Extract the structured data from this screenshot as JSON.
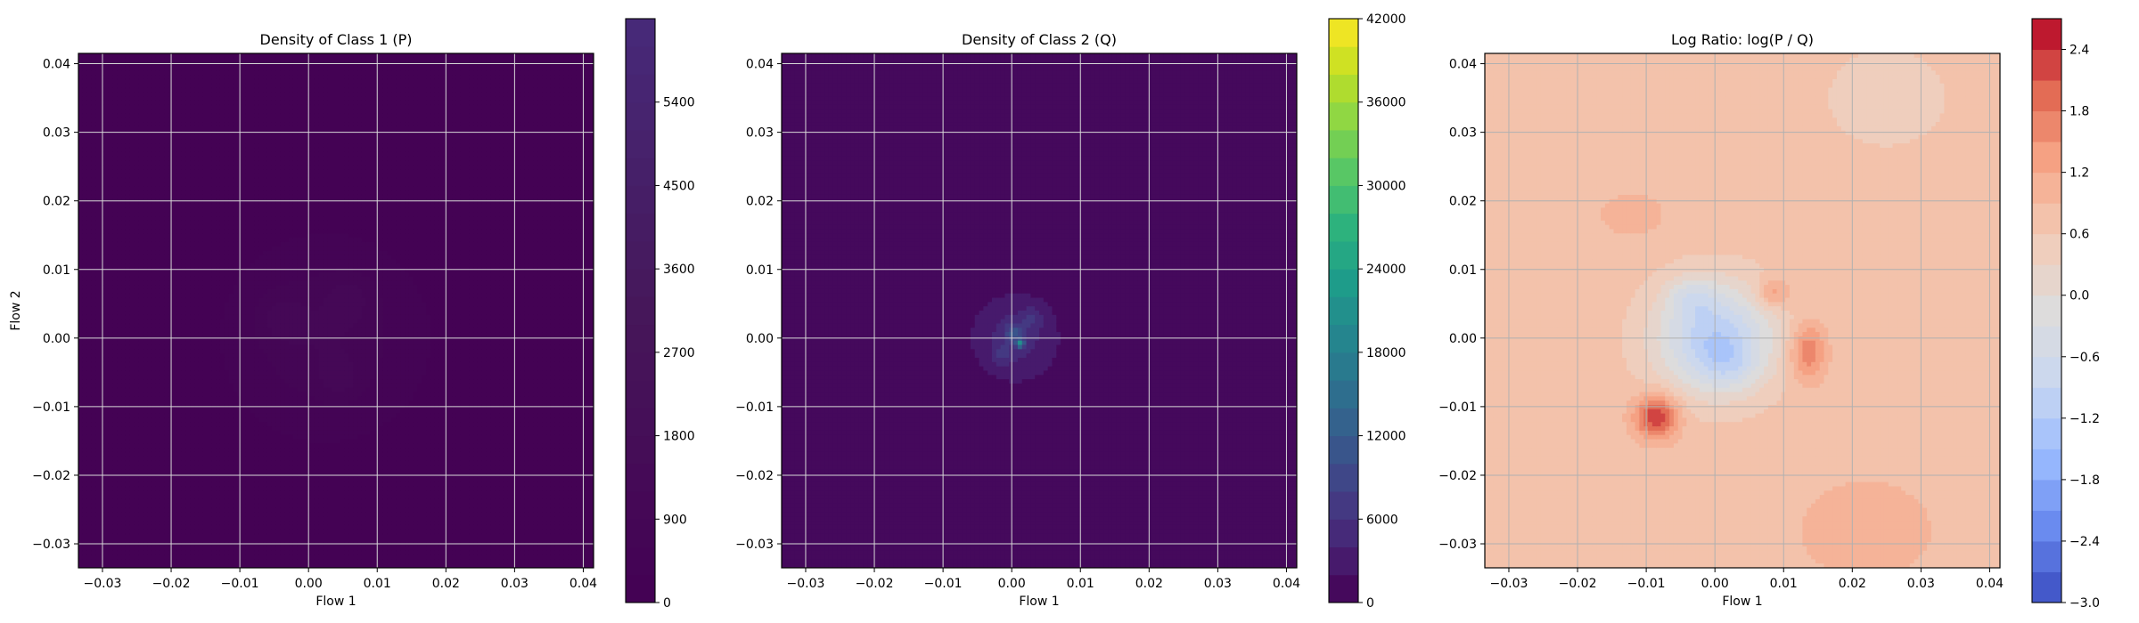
{
  "chart_data": [
    {
      "type": "heatmap",
      "title": "Density of Class 1 (P)",
      "xlabel": "Flow 1",
      "ylabel": "Flow 2",
      "xlim": [
        -0.0335,
        0.0415
      ],
      "ylim": [
        -0.0335,
        0.0415
      ],
      "xticks": [
        -0.03,
        -0.02,
        -0.01,
        0.0,
        0.01,
        0.02,
        0.03,
        0.04
      ],
      "xtick_labels": [
        "−0.03",
        "−0.02",
        "−0.01",
        "0.00",
        "0.01",
        "0.02",
        "0.03",
        "0.04"
      ],
      "yticks": [
        -0.03,
        -0.02,
        -0.01,
        0.0,
        0.01,
        0.02,
        0.03,
        0.04
      ],
      "ytick_labels": [
        "−0.03",
        "−0.02",
        "−0.01",
        "0.00",
        "0.01",
        "0.02",
        "0.03",
        "0.04"
      ],
      "grid": true,
      "colormap": "viridis",
      "colorbar": {
        "range": [
          0,
          6300
        ],
        "ticks": [
          0,
          900,
          1800,
          2700,
          3600,
          4500,
          5400
        ],
        "levels": 21,
        "colors": [
          "#440154",
          "#46175a",
          "#472a7a"
        ]
      },
      "background_value": 150,
      "blobs": [
        {
          "x": 0.0025,
          "y": 0.0,
          "sx": 0.0085,
          "sy": 0.0085,
          "v": 750
        },
        {
          "x": -0.004,
          "y": 0.003,
          "sx": 0.0025,
          "sy": 0.0025,
          "v": 450
        },
        {
          "x": 0.0045,
          "y": -0.006,
          "sx": 0.002,
          "sy": 0.002,
          "v": 420
        },
        {
          "x": 0.006,
          "y": 0.006,
          "sx": 0.0025,
          "sy": 0.0025,
          "v": 380
        }
      ]
    },
    {
      "type": "heatmap",
      "title": "Density of Class 2 (Q)",
      "xlabel": "Flow 1",
      "ylabel": "",
      "xlim": [
        -0.0335,
        0.0415
      ],
      "ylim": [
        -0.0335,
        0.0415
      ],
      "xticks": [
        -0.03,
        -0.02,
        -0.01,
        0.0,
        0.01,
        0.02,
        0.03,
        0.04
      ],
      "xtick_labels": [
        "−0.03",
        "−0.02",
        "−0.01",
        "0.00",
        "0.01",
        "0.02",
        "0.03",
        "0.04"
      ],
      "yticks": [
        -0.03,
        -0.02,
        -0.01,
        0.0,
        0.01,
        0.02,
        0.03,
        0.04
      ],
      "ytick_labels": [
        "−0.03",
        "−0.02",
        "−0.01",
        "0.00",
        "0.01",
        "0.02",
        "0.03",
        "0.04"
      ],
      "grid": true,
      "colormap": "viridis",
      "colorbar": {
        "range": [
          0,
          42000
        ],
        "ticks": [
          0,
          6000,
          12000,
          18000,
          24000,
          30000,
          36000,
          42000
        ],
        "levels": 21,
        "colors": [
          "#440154",
          "#482173",
          "#433e85",
          "#38588c",
          "#2d708e",
          "#25858e",
          "#1e9b8a",
          "#2ab07f",
          "#52c569",
          "#86d549",
          "#c2df23",
          "#fde725"
        ]
      },
      "background_value": 1200,
      "blobs": [
        {
          "x": 0.0005,
          "y": 0.0,
          "sx": 0.0035,
          "sy": 0.0035,
          "v": 4200
        },
        {
          "x": 0.0012,
          "y": -0.0008,
          "sx": 0.0004,
          "sy": 0.0004,
          "v": 16000
        },
        {
          "x": 0.0003,
          "y": 0.0008,
          "sx": 0.0009,
          "sy": 0.0009,
          "v": 5500
        },
        {
          "x": -0.0015,
          "y": -0.0025,
          "sx": 0.001,
          "sy": 0.001,
          "v": 3000
        },
        {
          "x": 0.003,
          "y": 0.003,
          "sx": 0.0012,
          "sy": 0.0012,
          "v": 2800
        }
      ]
    },
    {
      "type": "heatmap",
      "title": "Log Ratio: log(P / Q)",
      "xlabel": "Flow 1",
      "ylabel": "",
      "xlim": [
        -0.0335,
        0.0415
      ],
      "ylim": [
        -0.0335,
        0.0415
      ],
      "xticks": [
        -0.03,
        -0.02,
        -0.01,
        0.0,
        0.01,
        0.02,
        0.03,
        0.04
      ],
      "xtick_labels": [
        "−0.03",
        "−0.02",
        "−0.01",
        "0.00",
        "0.01",
        "0.02",
        "0.03",
        "0.04"
      ],
      "yticks": [
        -0.03,
        -0.02,
        -0.01,
        0.0,
        0.01,
        0.02,
        0.03,
        0.04
      ],
      "ytick_labels": [
        "−0.03",
        "−0.02",
        "−0.01",
        "0.00",
        "0.01",
        "0.02",
        "0.03",
        "0.04"
      ],
      "grid": true,
      "colormap": "coolwarm",
      "colorbar": {
        "range": [
          -3.0,
          2.7
        ],
        "ticks": [
          -3.0,
          -2.4,
          -1.8,
          -1.2,
          -0.6,
          0.0,
          0.6,
          1.2,
          1.8,
          2.4
        ],
        "tick_labels": [
          "−3.0",
          "−2.4",
          "−1.8",
          "−1.2",
          "−0.6",
          "0.0",
          "0.6",
          "1.2",
          "1.8",
          "2.4"
        ],
        "levels": 19,
        "colors": [
          "#3b4cc0",
          "#6788ee",
          "#9abbff",
          "#c9d7f0",
          "#dddcdc",
          "#f2cbb7",
          "#f7a889",
          "#e26952",
          "#b40426"
        ]
      },
      "background_value": 0.75,
      "blobs": [
        {
          "x": 0.0,
          "y": 0.0,
          "sx": 0.006,
          "sy": 0.0055,
          "v": -1.9
        },
        {
          "x": -0.0035,
          "y": 0.006,
          "sx": 0.0025,
          "sy": 0.002,
          "v": -0.6
        },
        {
          "x": 0.002,
          "y": -0.004,
          "sx": 0.003,
          "sy": 0.0025,
          "v": -0.5
        },
        {
          "x": -0.0085,
          "y": -0.0115,
          "sx": 0.0022,
          "sy": 0.0022,
          "v": 1.7
        },
        {
          "x": 0.0135,
          "y": -0.002,
          "sx": 0.0018,
          "sy": 0.003,
          "v": 1.1
        },
        {
          "x": 0.0085,
          "y": 0.0065,
          "sx": 0.0018,
          "sy": 0.0015,
          "v": 0.8
        },
        {
          "x": -0.012,
          "y": 0.018,
          "sx": 0.003,
          "sy": 0.002,
          "v": 0.45
        },
        {
          "x": 0.022,
          "y": -0.028,
          "sx": 0.008,
          "sy": 0.006,
          "v": 0.3
        },
        {
          "x": 0.025,
          "y": 0.035,
          "sx": 0.006,
          "sy": 0.005,
          "v": -0.4
        }
      ]
    }
  ]
}
